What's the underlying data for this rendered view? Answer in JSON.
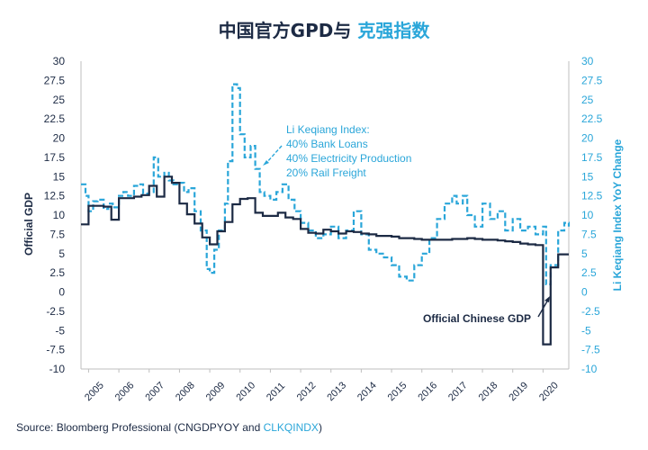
{
  "title_main": "中国官方GPD与",
  "title_highlight": "克强指数",
  "source": {
    "prefix": "Source: Bloomberg Professional (CNGDPYOY and ",
    "highlight": "CLKQINDX",
    "suffix": ")"
  },
  "colors": {
    "gdp": "#1c2a44",
    "li": "#2aa6d9",
    "gdp_axis": "#1c2a44",
    "li_axis": "#2aa6d9"
  },
  "chart_data": {
    "type": "line",
    "ylabel": "Official GDP",
    "y2label": "Li Keqiang Index YoY Change",
    "ylim": [
      -10,
      30
    ],
    "y2lim": [
      -10,
      30
    ],
    "xlim": [
      2004.75,
      2020.85
    ],
    "y_ticks": [
      "30",
      "27.5",
      "25",
      "22.5",
      "20",
      "17.5",
      "15",
      "12.5",
      "10",
      "7.5",
      "5",
      "2.5",
      "0",
      "-2.5",
      "-5",
      "-7.5",
      "-10"
    ],
    "y2_ticks": [
      "30",
      "27.5",
      "25",
      "22.5",
      "20",
      "17.5",
      "15",
      "12.5",
      "10",
      "7.5",
      "5",
      "2.5",
      "0",
      "-2.5",
      "-5",
      "-7.5",
      "-10"
    ],
    "x_ticks": [
      "2005",
      "2006",
      "2007",
      "2008",
      "2009",
      "2010",
      "2011",
      "2012",
      "2013",
      "2014",
      "2015",
      "2016",
      "2017",
      "2018",
      "2019",
      "2020"
    ],
    "grid": false,
    "annotations": [
      {
        "text_lines": [
          "Li Keqiang Index:",
          "40% Bank Loans",
          "40% Electricity Production",
          "20% Rail Freight"
        ],
        "series": "li"
      },
      {
        "text_lines": [
          "Official Chinese GDP"
        ],
        "series": "gdp"
      }
    ],
    "series": [
      {
        "key": "gdp",
        "axis": "left",
        "x": [
          2004.75,
          2005.0,
          2005.5,
          2005.75,
          2006.0,
          2006.5,
          2006.75,
          2007.0,
          2007.25,
          2007.5,
          2007.75,
          2008.0,
          2008.25,
          2008.5,
          2008.75,
          2009.0,
          2009.25,
          2009.5,
          2009.75,
          2010.0,
          2010.25,
          2010.5,
          2010.75,
          2011.0,
          2011.25,
          2011.5,
          2011.75,
          2012.0,
          2012.25,
          2012.5,
          2012.75,
          2013.0,
          2013.25,
          2013.5,
          2013.75,
          2014.0,
          2014.25,
          2014.5,
          2014.75,
          2015.0,
          2015.25,
          2015.5,
          2015.75,
          2016.0,
          2016.25,
          2016.5,
          2016.75,
          2017.0,
          2017.25,
          2017.5,
          2017.75,
          2018.0,
          2018.25,
          2018.5,
          2018.75,
          2019.0,
          2019.25,
          2019.5,
          2019.75,
          2020.0,
          2020.25,
          2020.5,
          2020.75,
          2020.85
        ],
        "y": [
          8.8,
          11.2,
          11.1,
          9.4,
          12.2,
          12.4,
          12.6,
          13.8,
          12.4,
          15.0,
          14.2,
          11.5,
          10.1,
          8.9,
          7.1,
          6.2,
          7.9,
          9.1,
          11.4,
          12.1,
          12.2,
          10.3,
          9.9,
          9.9,
          10.3,
          9.7,
          9.5,
          8.2,
          7.7,
          7.6,
          8.1,
          7.9,
          7.6,
          7.9,
          7.8,
          7.6,
          7.5,
          7.3,
          7.3,
          7.2,
          7.0,
          7.0,
          6.9,
          6.8,
          6.8,
          6.8,
          6.8,
          6.9,
          6.9,
          7.0,
          6.9,
          6.8,
          6.8,
          6.7,
          6.6,
          6.5,
          6.3,
          6.2,
          6.1,
          -6.8,
          3.2,
          4.9,
          4.9,
          4.9
        ]
      },
      {
        "key": "li",
        "axis": "right",
        "x": [
          2004.75,
          2004.9,
          2005.0,
          2005.15,
          2005.3,
          2005.5,
          2005.65,
          2005.8,
          2006.0,
          2006.15,
          2006.3,
          2006.5,
          2006.65,
          2006.8,
          2007.0,
          2007.15,
          2007.3,
          2007.5,
          2007.65,
          2007.8,
          2008.0,
          2008.15,
          2008.3,
          2008.5,
          2008.7,
          2008.9,
          2009.0,
          2009.15,
          2009.3,
          2009.5,
          2009.6,
          2009.75,
          2009.9,
          2010.0,
          2010.15,
          2010.35,
          2010.5,
          2010.65,
          2010.8,
          2011.0,
          2011.2,
          2011.4,
          2011.6,
          2011.8,
          2012.0,
          2012.25,
          2012.5,
          2012.75,
          2013.0,
          2013.25,
          2013.5,
          2013.75,
          2014.0,
          2014.25,
          2014.5,
          2014.75,
          2015.0,
          2015.25,
          2015.5,
          2015.75,
          2016.0,
          2016.25,
          2016.5,
          2016.75,
          2017.0,
          2017.15,
          2017.35,
          2017.5,
          2017.75,
          2018.0,
          2018.25,
          2018.5,
          2018.75,
          2019.0,
          2019.25,
          2019.5,
          2019.75,
          2020.0,
          2020.1,
          2020.25,
          2020.5,
          2020.7,
          2020.85
        ],
        "y": [
          14.0,
          12.5,
          10.5,
          11.8,
          12.0,
          10.8,
          11.5,
          11.0,
          12.5,
          13.0,
          12.5,
          13.8,
          14.0,
          12.8,
          13.0,
          17.5,
          15.0,
          15.5,
          14.5,
          14.0,
          14.2,
          13.0,
          13.5,
          10.5,
          8.0,
          3.0,
          2.5,
          5.5,
          8.0,
          11.5,
          17.0,
          27.0,
          26.5,
          20.5,
          17.5,
          19.0,
          16.0,
          13.0,
          12.5,
          12.0,
          13.0,
          14.0,
          12.0,
          10.5,
          9.0,
          8.0,
          7.0,
          7.5,
          8.5,
          7.0,
          8.0,
          10.5,
          7.5,
          5.5,
          5.0,
          4.5,
          3.5,
          2.0,
          1.5,
          3.5,
          5.0,
          7.0,
          9.5,
          11.5,
          12.5,
          11.5,
          12.5,
          10.0,
          8.5,
          11.5,
          9.5,
          10.5,
          8.0,
          9.5,
          8.0,
          8.5,
          7.5,
          8.5,
          1.0,
          3.5,
          8.0,
          9.0,
          8.5
        ]
      }
    ]
  }
}
